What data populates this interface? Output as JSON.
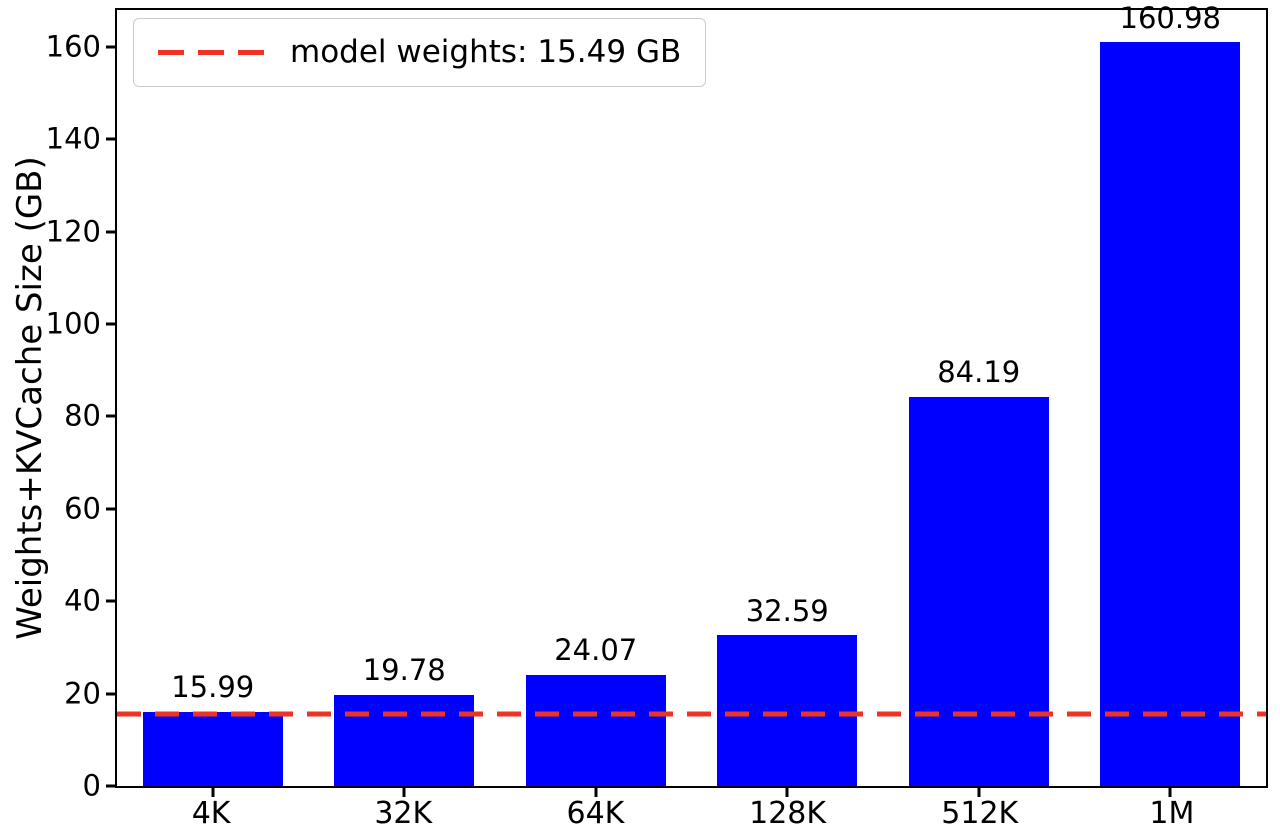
{
  "chart_data": {
    "type": "bar",
    "title": "",
    "xlabel": "",
    "ylabel": "Weights+KVCache Size (GB)",
    "categories": [
      "4K",
      "32K",
      "64K",
      "128K",
      "512K",
      "1M"
    ],
    "values": [
      15.99,
      19.78,
      24.07,
      32.59,
      84.19,
      160.98
    ],
    "bar_labels": [
      "15.99",
      "19.78",
      "24.07",
      "32.59",
      "84.19",
      "160.98"
    ],
    "bar_color": "#0000ff",
    "ylim": [
      0,
      168
    ],
    "yticks": [
      0,
      20,
      40,
      60,
      80,
      100,
      120,
      140,
      160
    ],
    "grid": false,
    "legend": {
      "position": "upper-left",
      "entries": [
        {
          "label": "model weights: 15.49 GB",
          "marker": "dashed-line",
          "color": "#ee3322"
        }
      ]
    },
    "reference_line": {
      "value": 15.49,
      "color": "#ee3322",
      "style": "dashed"
    }
  }
}
